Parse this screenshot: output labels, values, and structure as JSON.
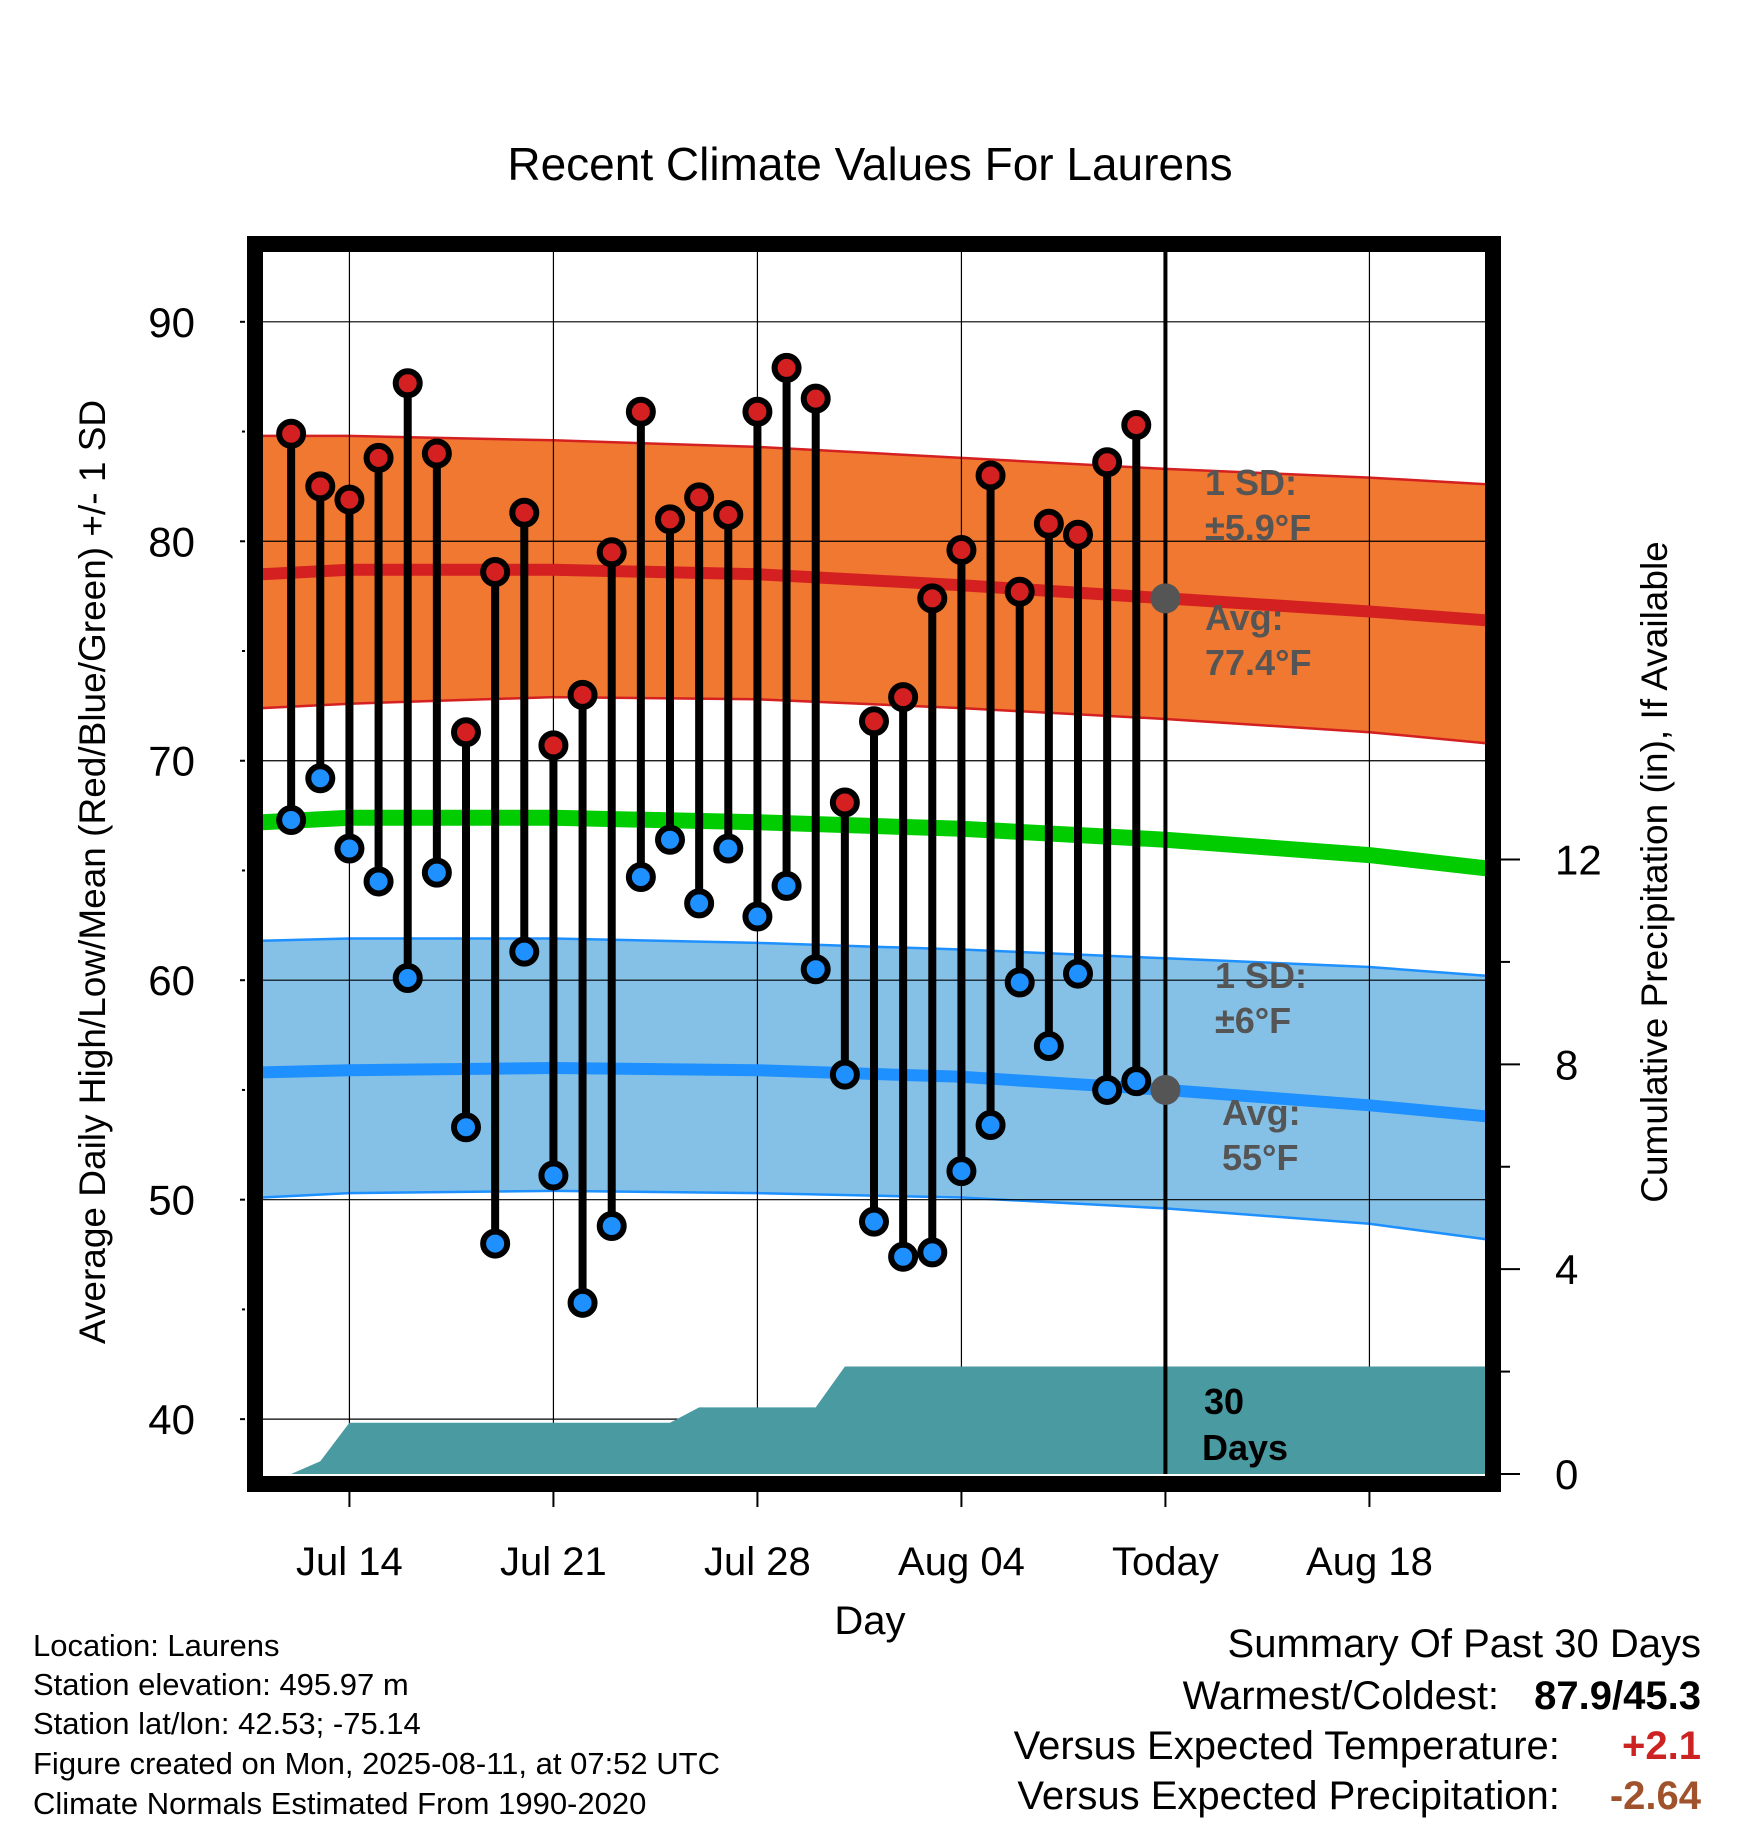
{
  "chart_data": {
    "type": "line",
    "title": "Recent Climate Values For Laurens",
    "xlabel": "Day",
    "ylabel": "Average Daily High/Low/Mean (Red/Blue/Green) +/- 1 SD",
    "y2label": "Cumulative Precipitation (in), If Available",
    "x_ticks": [
      "Jul 14",
      "Jul 21",
      "Jul 28",
      "Aug 04",
      "Today",
      "Aug 18"
    ],
    "y_ticks": [
      "40",
      "50",
      "60",
      "70",
      "80",
      "90"
    ],
    "y2_ticks": [
      "0",
      "4",
      "8",
      "12"
    ],
    "ylim": [
      37.5,
      93.5
    ],
    "y2lim": [
      0,
      24
    ],
    "grid": true,
    "x_range": [
      "2025-07-11",
      "2025-08-22"
    ],
    "today": "2025-08-11",
    "days": [
      "2025-07-12",
      "2025-07-13",
      "2025-07-14",
      "2025-07-15",
      "2025-07-16",
      "2025-07-17",
      "2025-07-18",
      "2025-07-19",
      "2025-07-20",
      "2025-07-21",
      "2025-07-22",
      "2025-07-23",
      "2025-07-24",
      "2025-07-25",
      "2025-07-26",
      "2025-07-27",
      "2025-07-28",
      "2025-07-29",
      "2025-07-30",
      "2025-07-31",
      "2025-08-01",
      "2025-08-02",
      "2025-08-03",
      "2025-08-04",
      "2025-08-05",
      "2025-08-06",
      "2025-08-07",
      "2025-08-08",
      "2025-08-09",
      "2025-08-10"
    ],
    "series": [
      {
        "name": "High",
        "color": "#d42020",
        "values": [
          84.9,
          82.5,
          81.9,
          83.8,
          87.2,
          84.0,
          71.3,
          78.6,
          81.3,
          70.7,
          73.0,
          79.5,
          85.9,
          81.0,
          82.0,
          81.2,
          85.9,
          87.9,
          86.5,
          68.1,
          71.8,
          72.9,
          77.4,
          79.6,
          83.0,
          77.7,
          80.8,
          80.3,
          83.6,
          85.3
        ]
      },
      {
        "name": "Low",
        "color": "#1e90ff",
        "values": [
          67.3,
          69.2,
          66.0,
          64.5,
          60.1,
          64.9,
          53.3,
          48.0,
          61.3,
          51.1,
          45.3,
          48.8,
          64.7,
          66.4,
          63.5,
          66.0,
          62.9,
          64.3,
          60.5,
          55.7,
          49.0,
          47.4,
          47.6,
          51.3,
          53.4,
          59.9,
          57.0,
          60.3,
          55.0,
          55.4
        ]
      }
    ],
    "normals": {
      "days": [
        "2025-07-11",
        "2025-07-14",
        "2025-07-21",
        "2025-07-28",
        "2025-08-04",
        "2025-08-11",
        "2025-08-18",
        "2025-08-22"
      ],
      "high_mean": [
        78.5,
        78.7,
        78.7,
        78.5,
        78.0,
        77.4,
        76.8,
        76.4
      ],
      "high_upper": [
        84.8,
        84.8,
        84.6,
        84.3,
        83.8,
        83.3,
        82.9,
        82.6
      ],
      "high_lower": [
        72.4,
        72.6,
        72.9,
        72.8,
        72.4,
        71.9,
        71.3,
        70.8
      ],
      "mean": [
        67.2,
        67.4,
        67.4,
        67.2,
        66.9,
        66.4,
        65.7,
        65.1
      ],
      "low_mean": [
        55.8,
        55.9,
        56.0,
        55.9,
        55.6,
        55.0,
        54.3,
        53.8
      ],
      "low_upper": [
        61.8,
        61.9,
        61.9,
        61.7,
        61.4,
        61.0,
        60.6,
        60.2
      ],
      "low_lower": [
        50.1,
        50.3,
        50.4,
        50.3,
        50.1,
        49.6,
        48.9,
        48.2
      ]
    },
    "precip_cumulative": {
      "days": [
        "2025-07-11",
        "2025-07-12",
        "2025-07-13",
        "2025-07-14",
        "2025-07-25",
        "2025-07-26",
        "2025-07-27",
        "2025-07-30",
        "2025-07-31",
        "2025-08-11",
        "2025-08-22"
      ],
      "values": [
        0,
        0,
        0.25,
        1.0,
        1.0,
        1.3,
        1.3,
        1.3,
        2.1,
        2.1,
        2.1
      ]
    },
    "annotations": {
      "high_sd_line1": "1 SD:",
      "high_sd_line2": "±5.9°F",
      "high_avg_line1": "Avg:",
      "high_avg_line2": "77.4°F",
      "low_sd_line1": "1 SD:",
      "low_sd_line2": "±6°F",
      "low_avg_line1": "Avg:",
      "low_avg_line2": "55°F",
      "days_line1": "30",
      "days_line2": "Days"
    },
    "colors": {
      "high_band": "#f07830",
      "high_line": "#d42020",
      "low_band": "#85c1e6",
      "low_line": "#1e90ff",
      "mean_line": "#00cc00",
      "precip": "#4a9aa2",
      "annotation": "#555555"
    }
  },
  "info": {
    "location": "Location: Laurens",
    "elevation": "Station elevation: 495.97 m",
    "latlon": "Station lat/lon: 42.53; -75.14",
    "created": "Figure created on Mon, 2025-08-11, at 07:52 UTC",
    "normals": "Climate Normals Estimated From 1990-2020"
  },
  "summary": {
    "title": "Summary Of Past 30 Days",
    "warmest_label": "Warmest/Coldest:",
    "warmest_value": "87.9/45.3",
    "temp_label": "Versus Expected Temperature:",
    "temp_value": "+2.1",
    "temp_color": "#cc2222",
    "precip_label": "Versus Expected Precipitation:",
    "precip_value": "-2.64",
    "precip_color": "#a0522d"
  }
}
